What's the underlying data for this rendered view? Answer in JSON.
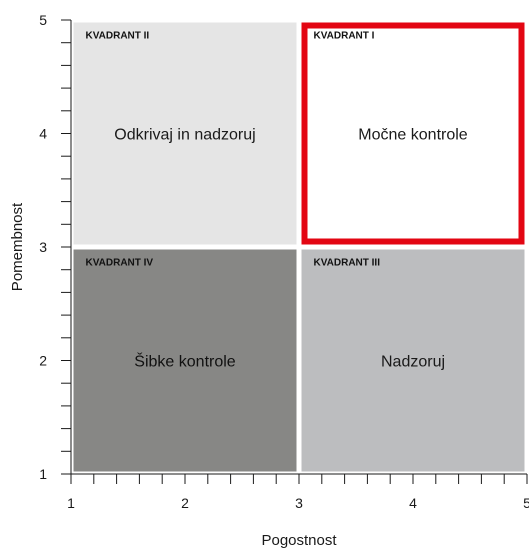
{
  "chart_data": {
    "type": "quadrant",
    "xlabel": "Pogostnost",
    "ylabel": "Pomembnost",
    "xlim": [
      1,
      5
    ],
    "ylim": [
      1,
      5
    ],
    "x_ticks": [
      1,
      2,
      3,
      4,
      5
    ],
    "y_ticks": [
      1,
      2,
      3,
      4,
      5
    ],
    "minor_ticks_per_unit": 5,
    "grid": false,
    "quadrants": [
      {
        "id": "q2",
        "title": "KVADRANT II",
        "label": "Odkrivaj in nadzoruj",
        "x_range": [
          1,
          3
        ],
        "y_range": [
          3,
          5
        ],
        "fill": "#e5e5e5",
        "text_color": "#1a1a1a",
        "highlighted": false
      },
      {
        "id": "q1",
        "title": "KVADRANT I",
        "label": "Močne kontrole",
        "x_range": [
          3,
          5
        ],
        "y_range": [
          3,
          5
        ],
        "fill": "#ffffff",
        "text_color": "#1a1a1a",
        "highlighted": true
      },
      {
        "id": "q4",
        "title": "KVADRANT IV",
        "label": "Šibke kontrole",
        "x_range": [
          1,
          3
        ],
        "y_range": [
          1,
          3
        ],
        "fill": "#878785",
        "text_color": "#111111",
        "highlighted": false
      },
      {
        "id": "q3",
        "title": "KVADRANT III",
        "label": "Nadzoruj",
        "x_range": [
          3,
          5
        ],
        "y_range": [
          1,
          3
        ],
        "fill": "#bcbdbf",
        "text_color": "#1a1a1a",
        "highlighted": false
      }
    ],
    "highlight_color": "#e30613"
  }
}
